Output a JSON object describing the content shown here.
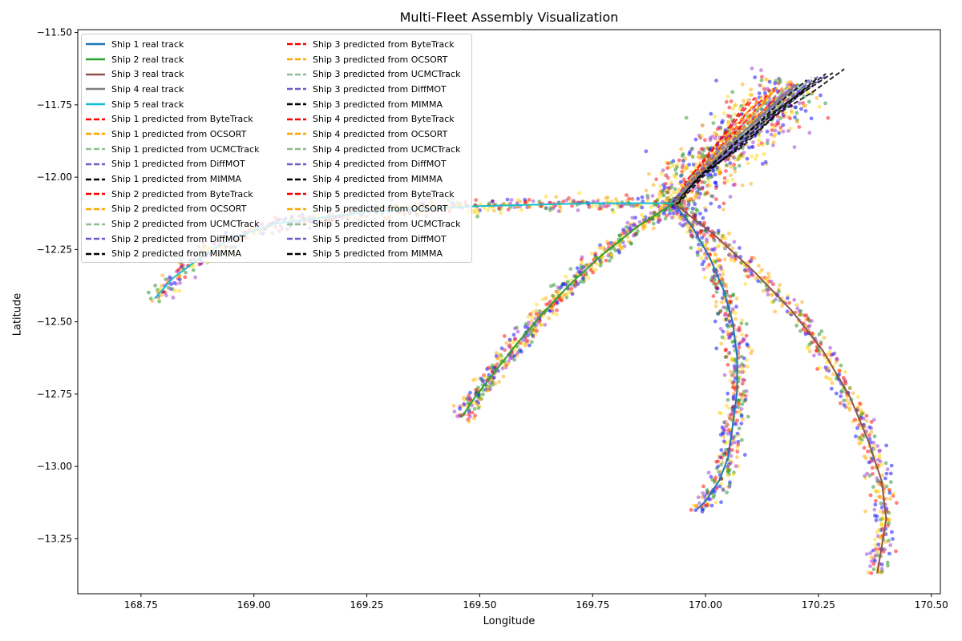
{
  "chart_data": {
    "type": "line",
    "title": "Multi-Fleet Assembly Visualization",
    "xlabel": "Longitude",
    "ylabel": "Latitude",
    "xlim": [
      168.61,
      170.52
    ],
    "ylim": [
      -13.44,
      -11.49
    ],
    "xticks": [
      168.75,
      169.0,
      169.25,
      169.5,
      169.75,
      170.0,
      170.25,
      170.5
    ],
    "xtick_labels": [
      "168.75",
      "169.00",
      "169.25",
      "169.50",
      "169.75",
      "170.00",
      "170.25",
      "170.50"
    ],
    "yticks": [
      -11.5,
      -11.75,
      -12.0,
      -12.25,
      -12.5,
      -12.75,
      -13.0,
      -13.25
    ],
    "ytick_labels": [
      "−11.50",
      "−11.75",
      "−12.00",
      "−12.25",
      "−12.50",
      "−12.75",
      "−13.00",
      "−13.25"
    ],
    "grid": false,
    "legend_position": "upper-left",
    "assembly_point": [
      169.93,
      -12.09
    ],
    "tracks": [
      {
        "name": "Ship 1 real track",
        "color": "#1f77b4",
        "x": [
          169.93,
          169.97,
          170.01,
          170.04,
          170.06,
          170.07,
          170.07,
          170.06,
          170.05,
          170.03,
          170.0,
          169.98
        ],
        "y": [
          -12.09,
          -12.17,
          -12.28,
          -12.39,
          -12.5,
          -12.62,
          -12.74,
          -12.86,
          -12.97,
          -13.05,
          -13.12,
          -13.15
        ]
      },
      {
        "name": "Ship 2 real track",
        "color": "#2ca02c",
        "x": [
          169.93,
          169.85,
          169.77,
          169.7,
          169.64,
          169.58,
          169.53,
          169.49,
          169.46
        ],
        "y": [
          -12.09,
          -12.17,
          -12.27,
          -12.37,
          -12.47,
          -12.58,
          -12.68,
          -12.76,
          -12.83
        ]
      },
      {
        "name": "Ship 3 real track",
        "color": "#8c564b",
        "x": [
          169.93,
          170.02,
          170.11,
          170.19,
          170.26,
          170.32,
          170.36,
          170.39,
          170.4,
          170.39,
          170.38
        ],
        "y": [
          -12.09,
          -12.2,
          -12.33,
          -12.46,
          -12.6,
          -12.76,
          -12.91,
          -13.05,
          -13.18,
          -13.28,
          -13.37
        ]
      },
      {
        "name": "Ship 4 real track",
        "color": "#7f7f7f",
        "x": [
          169.93,
          169.98,
          170.04,
          170.1,
          170.15,
          170.2
        ],
        "y": [
          -12.09,
          -12.0,
          -11.91,
          -11.82,
          -11.75,
          -11.68
        ]
      },
      {
        "name": "Ship 5 real track",
        "color": "#17becf",
        "x": [
          169.93,
          169.75,
          169.5,
          169.25,
          169.05,
          168.95,
          168.88,
          168.82,
          168.78
        ],
        "y": [
          -12.09,
          -12.09,
          -12.1,
          -12.12,
          -12.16,
          -12.21,
          -12.28,
          -12.35,
          -12.42
        ]
      }
    ],
    "predictors": [
      {
        "name": "ByteTrack",
        "color": "#ff0000"
      },
      {
        "name": "OCSORT",
        "color": "#ffa500"
      },
      {
        "name": "UCMCTrack",
        "color": "#8fbc8f"
      },
      {
        "name": "DiffMOT",
        "color": "#6a5acd"
      },
      {
        "name": "MIMMA",
        "color": "#000000"
      }
    ],
    "scatter_colors": [
      "#ff0000",
      "#ffa500",
      "#ffd700",
      "#0000ff",
      "#9932cc",
      "#228b22"
    ],
    "legend": {
      "columns": [
        [
          {
            "label": "Ship 1 real track",
            "color": "#1f77b4",
            "style": "solid"
          },
          {
            "label": "Ship 2 real track",
            "color": "#2ca02c",
            "style": "solid"
          },
          {
            "label": "Ship 3 real track",
            "color": "#8c564b",
            "style": "solid"
          },
          {
            "label": "Ship 4 real track",
            "color": "#7f7f7f",
            "style": "solid"
          },
          {
            "label": "Ship 5 real track",
            "color": "#17becf",
            "style": "solid"
          },
          {
            "label": "Ship 1 predicted from ByteTrack",
            "color": "#ff0000",
            "style": "dashed"
          },
          {
            "label": "Ship 1 predicted from OCSORT",
            "color": "#ffa500",
            "style": "dashed"
          },
          {
            "label": "Ship 1 predicted from UCMCTrack",
            "color": "#8fbc8f",
            "style": "dashed"
          },
          {
            "label": "Ship 1 predicted from DiffMOT",
            "color": "#6a5acd",
            "style": "dashed"
          },
          {
            "label": "Ship 1 predicted from MIMMA",
            "color": "#000000",
            "style": "dashed"
          },
          {
            "label": "Ship 2 predicted from ByteTrack",
            "color": "#ff0000",
            "style": "dashed"
          },
          {
            "label": "Ship 2 predicted from OCSORT",
            "color": "#ffa500",
            "style": "dashed"
          },
          {
            "label": "Ship 2 predicted from UCMCTrack",
            "color": "#8fbc8f",
            "style": "dashed"
          },
          {
            "label": "Ship 2 predicted from DiffMOT",
            "color": "#6a5acd",
            "style": "dashed"
          },
          {
            "label": "Ship 2 predicted from MIMMA",
            "color": "#000000",
            "style": "dashed"
          }
        ],
        [
          {
            "label": "Ship 3 predicted from ByteTrack",
            "color": "#ff0000",
            "style": "dashed"
          },
          {
            "label": "Ship 3 predicted from OCSORT",
            "color": "#ffa500",
            "style": "dashed"
          },
          {
            "label": "Ship 3 predicted from UCMCTrack",
            "color": "#8fbc8f",
            "style": "dashed"
          },
          {
            "label": "Ship 3 predicted from DiffMOT",
            "color": "#6a5acd",
            "style": "dashed"
          },
          {
            "label": "Ship 3 predicted from MIMMA",
            "color": "#000000",
            "style": "dashed"
          },
          {
            "label": "Ship 4 predicted from ByteTrack",
            "color": "#ff0000",
            "style": "dashed"
          },
          {
            "label": "Ship 4 predicted from OCSORT",
            "color": "#ffa500",
            "style": "dashed"
          },
          {
            "label": "Ship 4 predicted from UCMCTrack",
            "color": "#8fbc8f",
            "style": "dashed"
          },
          {
            "label": "Ship 4 predicted from DiffMOT",
            "color": "#6a5acd",
            "style": "dashed"
          },
          {
            "label": "Ship 4 predicted from MIMMA",
            "color": "#000000",
            "style": "dashed"
          },
          {
            "label": "Ship 5 predicted from ByteTrack",
            "color": "#ff0000",
            "style": "dashed"
          },
          {
            "label": "Ship 5 predicted from OCSORT",
            "color": "#ffa500",
            "style": "dashed"
          },
          {
            "label": "Ship 5 predicted from UCMCTrack",
            "color": "#8fbc8f",
            "style": "dashed"
          },
          {
            "label": "Ship 5 predicted from DiffMOT",
            "color": "#6a5acd",
            "style": "dashed"
          },
          {
            "label": "Ship 5 predicted from MIMMA",
            "color": "#000000",
            "style": "dashed"
          }
        ]
      ]
    }
  }
}
